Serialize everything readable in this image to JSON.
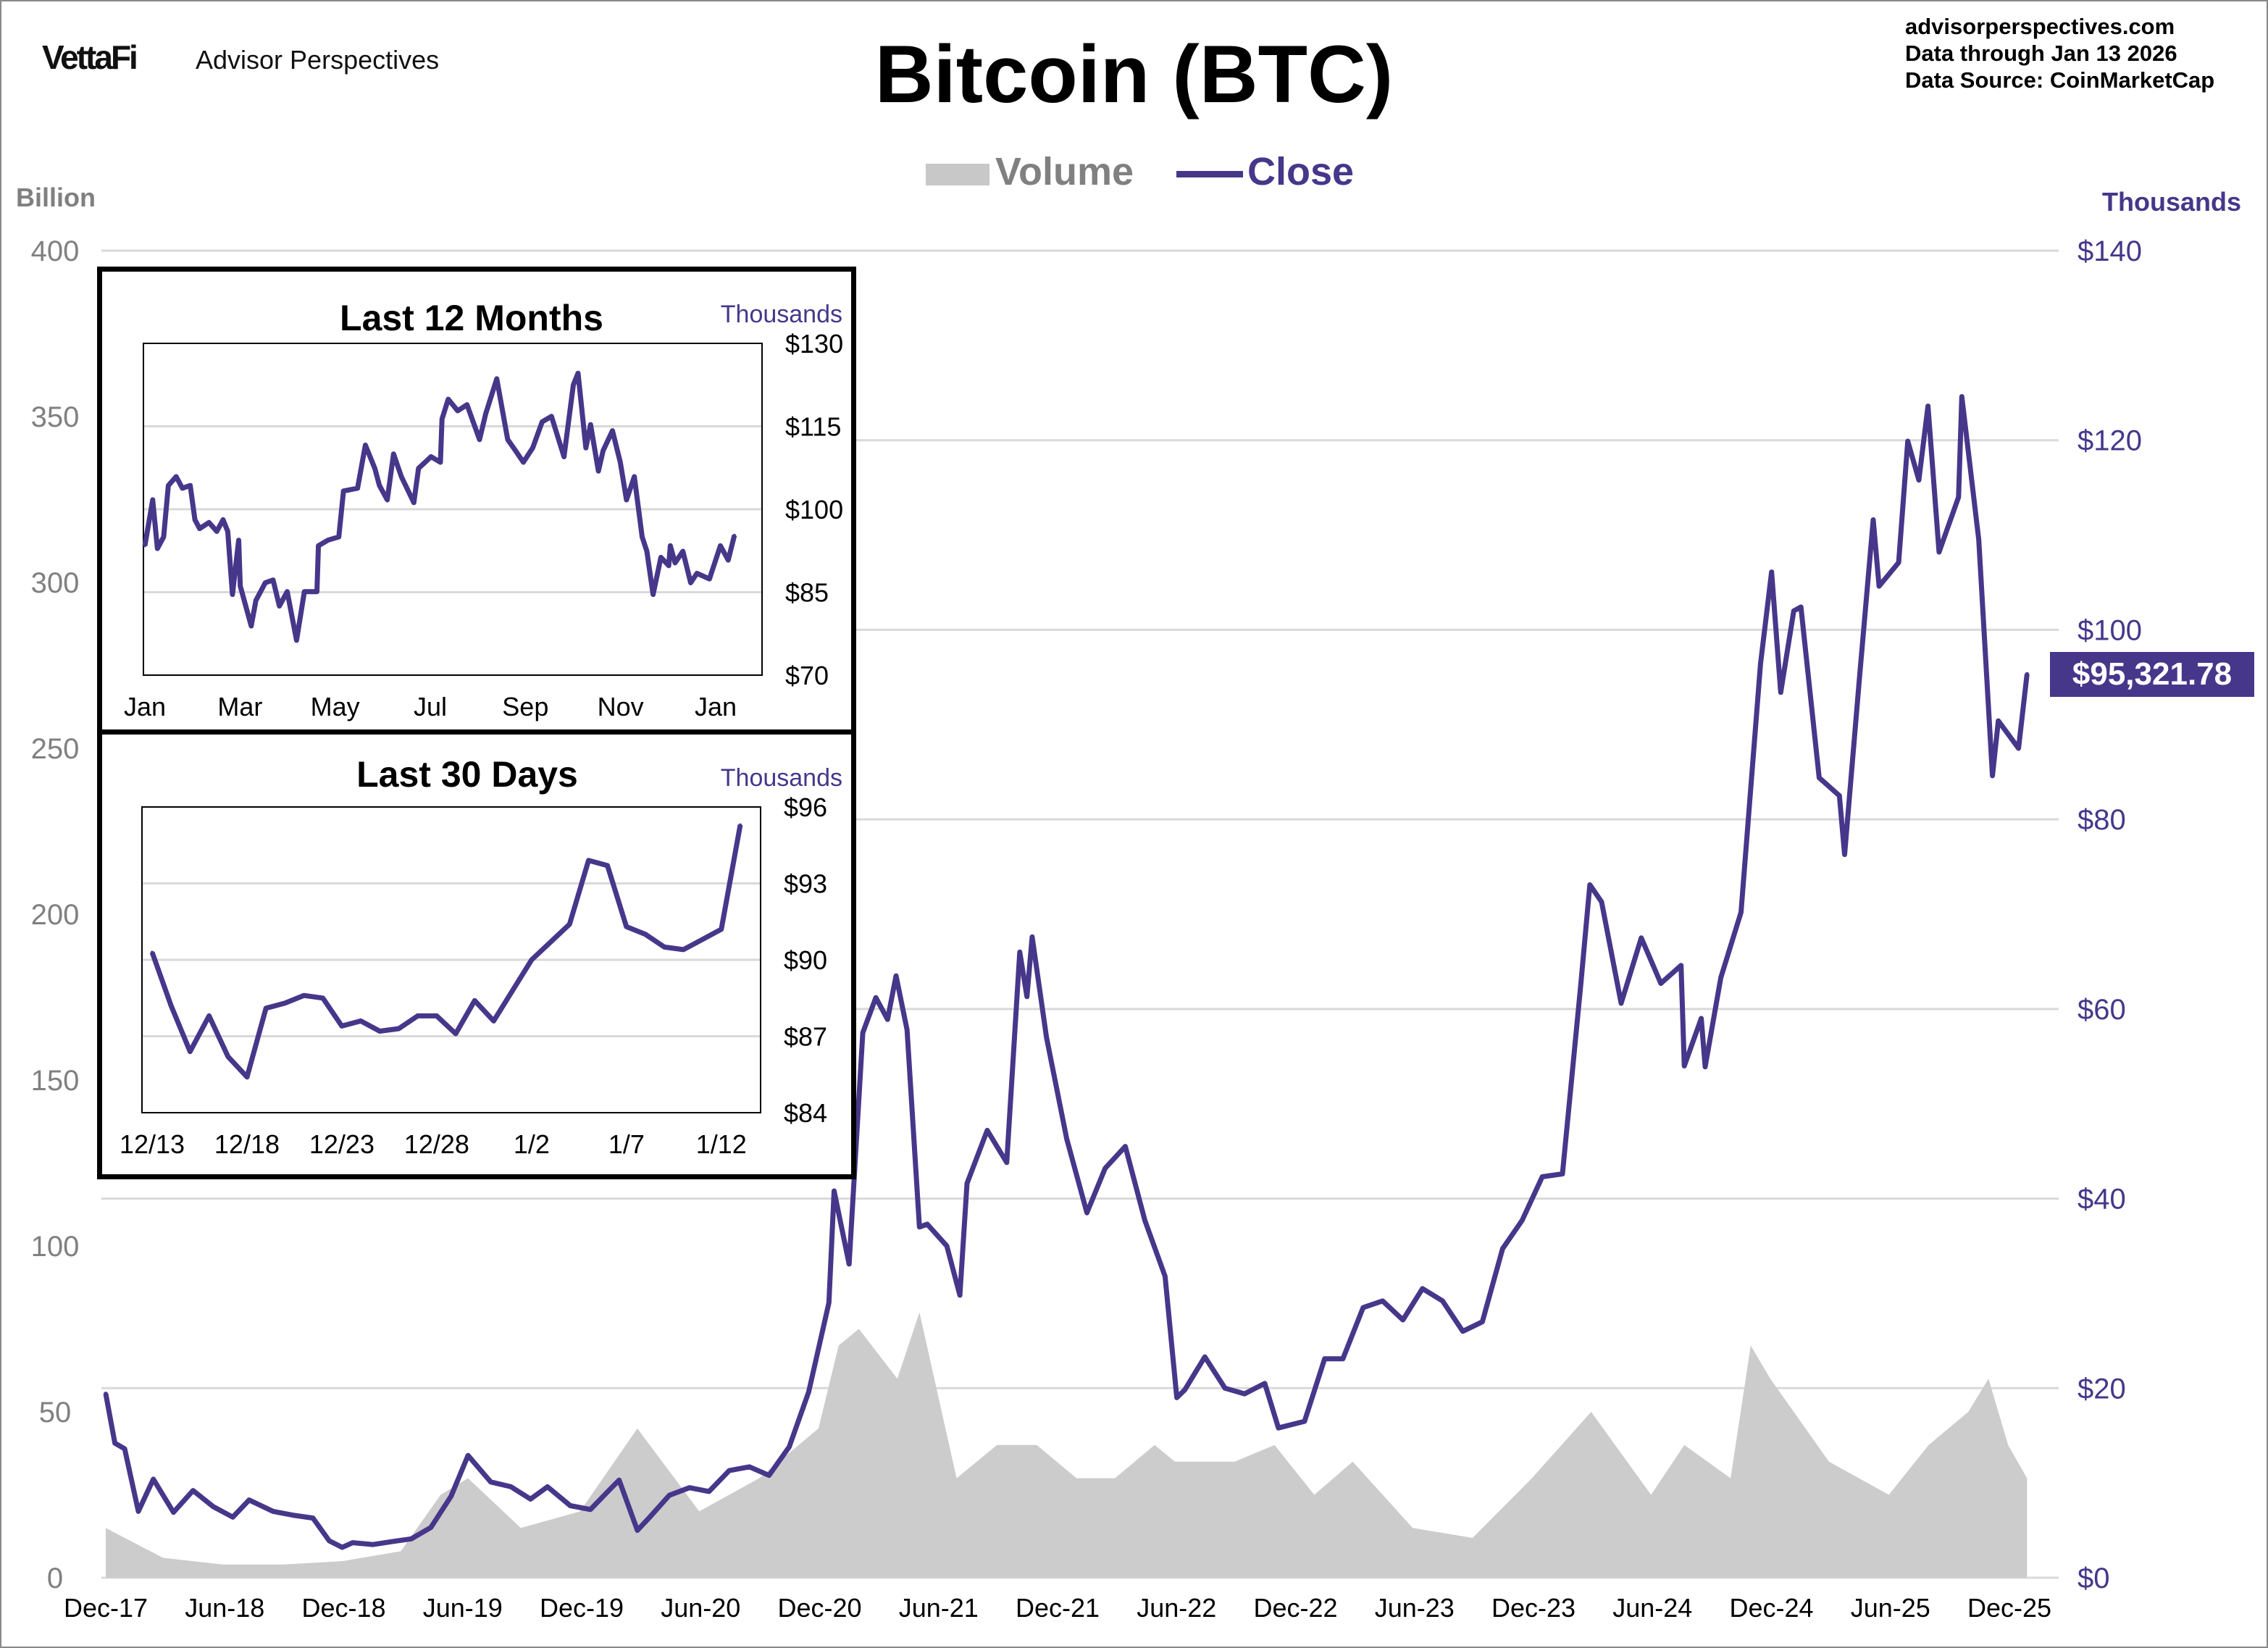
{
  "header": {
    "logo": "VettaFi",
    "logo_subtitle": "Advisor Perspectives",
    "title": "Bitcoin (BTC)",
    "source_lines": [
      "advisorperspectives.com",
      "Data through  Jan 13 2026",
      "Data Source:  CoinMarketCap"
    ]
  },
  "colors": {
    "close": "#46378a",
    "volume": "#cccccc",
    "grid": "#d9d9d9",
    "left_axis": "#808080"
  },
  "last_price_label": "$95,321.78",
  "chart_data": [
    {
      "type": "area+line",
      "title": "Bitcoin (BTC)",
      "legend": [
        "Volume",
        "Close"
      ],
      "legend_placement": "top-center",
      "grid": true,
      "left_axis": {
        "unit_label": "Billion",
        "range": [
          0,
          400
        ],
        "ticks": [
          "0",
          "50",
          "100",
          "150",
          "200",
          "250",
          "300",
          "350",
          "400"
        ]
      },
      "right_axis": {
        "unit_label": "Thousands",
        "range": [
          0,
          140
        ],
        "ticks": [
          "$0",
          "$20",
          "$40",
          "$60",
          "$80",
          "$100",
          "$120",
          "$140"
        ]
      },
      "x_ticks": [
        "Dec-17",
        "Jun-18",
        "Dec-18",
        "Jun-19",
        "Dec-19",
        "Jun-20",
        "Dec-20",
        "Jun-21",
        "Dec-21",
        "Jun-22",
        "Dec-22",
        "Jun-23",
        "Dec-23",
        "Jun-24",
        "Dec-24",
        "Jun-25",
        "Dec-25"
      ],
      "close_series": {
        "name": "Close",
        "axis": "right",
        "points": [
          [
            "2017-12-17",
            19.4
          ],
          [
            "2017-12-31",
            14.2
          ],
          [
            "2018-01-15",
            13.6
          ],
          [
            "2018-02-05",
            7.0
          ],
          [
            "2018-02-28",
            10.4
          ],
          [
            "2018-03-31",
            6.9
          ],
          [
            "2018-04-30",
            9.2
          ],
          [
            "2018-05-31",
            7.5
          ],
          [
            "2018-06-30",
            6.4
          ],
          [
            "2018-07-25",
            8.2
          ],
          [
            "2018-08-31",
            7.0
          ],
          [
            "2018-09-30",
            6.6
          ],
          [
            "2018-10-31",
            6.3
          ],
          [
            "2018-11-25",
            3.9
          ],
          [
            "2018-12-15",
            3.2
          ],
          [
            "2018-12-31",
            3.7
          ],
          [
            "2019-01-31",
            3.5
          ],
          [
            "2019-02-28",
            3.8
          ],
          [
            "2019-03-31",
            4.1
          ],
          [
            "2019-04-30",
            5.3
          ],
          [
            "2019-05-31",
            8.6
          ],
          [
            "2019-06-26",
            12.9
          ],
          [
            "2019-07-31",
            10.1
          ],
          [
            "2019-08-31",
            9.6
          ],
          [
            "2019-09-30",
            8.3
          ],
          [
            "2019-10-26",
            9.6
          ],
          [
            "2019-11-30",
            7.6
          ],
          [
            "2019-12-31",
            7.2
          ],
          [
            "2020-01-31",
            9.4
          ],
          [
            "2020-02-13",
            10.3
          ],
          [
            "2020-03-12",
            5.0
          ],
          [
            "2020-03-31",
            6.4
          ],
          [
            "2020-04-30",
            8.7
          ],
          [
            "2020-05-31",
            9.5
          ],
          [
            "2020-06-30",
            9.1
          ],
          [
            "2020-07-31",
            11.3
          ],
          [
            "2020-08-31",
            11.7
          ],
          [
            "2020-09-30",
            10.8
          ],
          [
            "2020-10-31",
            13.8
          ],
          [
            "2020-11-30",
            19.6
          ],
          [
            "2020-12-31",
            29.0
          ],
          [
            "2021-01-08",
            40.8
          ],
          [
            "2021-01-31",
            33.1
          ],
          [
            "2021-02-21",
            57.5
          ],
          [
            "2021-03-13",
            61.2
          ],
          [
            "2021-03-31",
            58.9
          ],
          [
            "2021-04-13",
            63.5
          ],
          [
            "2021-04-30",
            57.8
          ],
          [
            "2021-05-19",
            37.0
          ],
          [
            "2021-05-31",
            37.3
          ],
          [
            "2021-06-30",
            35.0
          ],
          [
            "2021-07-20",
            29.8
          ],
          [
            "2021-07-31",
            41.6
          ],
          [
            "2021-08-31",
            47.2
          ],
          [
            "2021-09-30",
            43.8
          ],
          [
            "2021-10-20",
            66.0
          ],
          [
            "2021-10-31",
            61.3
          ],
          [
            "2021-11-08",
            67.6
          ],
          [
            "2021-11-30",
            57.0
          ],
          [
            "2021-12-31",
            46.3
          ],
          [
            "2022-01-31",
            38.5
          ],
          [
            "2022-02-28",
            43.2
          ],
          [
            "2022-03-31",
            45.5
          ],
          [
            "2022-04-30",
            37.7
          ],
          [
            "2022-05-31",
            31.8
          ],
          [
            "2022-06-18",
            19.0
          ],
          [
            "2022-06-30",
            19.8
          ],
          [
            "2022-07-31",
            23.3
          ],
          [
            "2022-08-31",
            20.0
          ],
          [
            "2022-09-30",
            19.4
          ],
          [
            "2022-10-31",
            20.5
          ],
          [
            "2022-11-21",
            15.8
          ],
          [
            "2022-12-31",
            16.5
          ],
          [
            "2023-01-31",
            23.1
          ],
          [
            "2023-02-28",
            23.1
          ],
          [
            "2023-03-31",
            28.5
          ],
          [
            "2023-04-30",
            29.2
          ],
          [
            "2023-05-31",
            27.2
          ],
          [
            "2023-06-30",
            30.5
          ],
          [
            "2023-07-31",
            29.2
          ],
          [
            "2023-08-31",
            26.0
          ],
          [
            "2023-09-30",
            27.0
          ],
          [
            "2023-10-31",
            34.7
          ],
          [
            "2023-11-30",
            37.7
          ],
          [
            "2023-12-31",
            42.3
          ],
          [
            "2024-01-31",
            42.6
          ],
          [
            "2024-02-28",
            62.5
          ],
          [
            "2024-03-13",
            73.1
          ],
          [
            "2024-03-31",
            71.3
          ],
          [
            "2024-04-30",
            60.6
          ],
          [
            "2024-05-31",
            67.5
          ],
          [
            "2024-06-30",
            62.7
          ],
          [
            "2024-07-31",
            64.6
          ],
          [
            "2024-08-05",
            54.0
          ],
          [
            "2024-08-31",
            59.0
          ],
          [
            "2024-09-06",
            53.9
          ],
          [
            "2024-09-30",
            63.3
          ],
          [
            "2024-10-31",
            70.2
          ],
          [
            "2024-11-30",
            96.4
          ],
          [
            "2024-12-17",
            106.1
          ],
          [
            "2024-12-31",
            93.4
          ],
          [
            "2025-01-20",
            102.0
          ],
          [
            "2025-01-31",
            102.4
          ],
          [
            "2025-02-28",
            84.4
          ],
          [
            "2025-03-31",
            82.5
          ],
          [
            "2025-04-08",
            76.3
          ],
          [
            "2025-04-30",
            94.2
          ],
          [
            "2025-05-22",
            111.6
          ],
          [
            "2025-05-31",
            104.6
          ],
          [
            "2025-06-30",
            107.1
          ],
          [
            "2025-07-14",
            119.9
          ],
          [
            "2025-07-31",
            115.8
          ],
          [
            "2025-08-14",
            123.6
          ],
          [
            "2025-08-31",
            108.2
          ],
          [
            "2025-09-30",
            114.0
          ],
          [
            "2025-10-05",
            124.6
          ],
          [
            "2025-10-31",
            109.5
          ],
          [
            "2025-11-21",
            84.6
          ],
          [
            "2025-11-30",
            90.4
          ],
          [
            "2025-12-31",
            87.5
          ],
          [
            "2026-01-13",
            95.3
          ]
        ]
      },
      "volume_series": {
        "name": "Volume",
        "axis": "left",
        "points": [
          [
            "2017-12-17",
            15
          ],
          [
            "2018-01-15",
            12
          ],
          [
            "2018-03-15",
            6
          ],
          [
            "2018-06-15",
            4
          ],
          [
            "2018-09-15",
            4
          ],
          [
            "2018-12-15",
            5
          ],
          [
            "2019-03-15",
            8
          ],
          [
            "2019-05-15",
            25
          ],
          [
            "2019-06-26",
            30
          ],
          [
            "2019-09-15",
            15
          ],
          [
            "2019-12-15",
            20
          ],
          [
            "2020-03-12",
            45
          ],
          [
            "2020-06-15",
            20
          ],
          [
            "2020-09-15",
            30
          ],
          [
            "2020-12-15",
            45
          ],
          [
            "2021-01-15",
            70
          ],
          [
            "2021-02-15",
            75
          ],
          [
            "2021-04-15",
            60
          ],
          [
            "2021-05-19",
            80
          ],
          [
            "2021-07-15",
            30
          ],
          [
            "2021-09-15",
            40
          ],
          [
            "2021-11-15",
            40
          ],
          [
            "2022-01-15",
            30
          ],
          [
            "2022-03-15",
            30
          ],
          [
            "2022-05-15",
            40
          ],
          [
            "2022-06-15",
            35
          ],
          [
            "2022-09-15",
            35
          ],
          [
            "2022-11-15",
            40
          ],
          [
            "2023-01-15",
            25
          ],
          [
            "2023-03-15",
            35
          ],
          [
            "2023-06-15",
            15
          ],
          [
            "2023-09-15",
            12
          ],
          [
            "2023-12-15",
            30
          ],
          [
            "2024-03-15",
            50
          ],
          [
            "2024-06-15",
            25
          ],
          [
            "2024-08-05",
            40
          ],
          [
            "2024-10-15",
            30
          ],
          [
            "2024-11-15",
            70
          ],
          [
            "2024-12-15",
            60
          ],
          [
            "2025-03-15",
            35
          ],
          [
            "2025-06-15",
            25
          ],
          [
            "2025-08-15",
            40
          ],
          [
            "2025-10-15",
            50
          ],
          [
            "2025-11-15",
            60
          ],
          [
            "2025-12-15",
            40
          ],
          [
            "2026-01-13",
            30
          ]
        ]
      }
    },
    {
      "type": "line",
      "title": "Last 12 Months",
      "y_unit_label": "Thousands",
      "y_range": [
        70,
        130
      ],
      "y_ticks": [
        "$130",
        "$115",
        "$100",
        "$85",
        "$70"
      ],
      "x_ticks": [
        "Jan",
        "Mar",
        "May",
        "Jul",
        "Sep",
        "Nov",
        "Jan"
      ],
      "grid": true,
      "points": [
        [
          "2025-01-01",
          93.4
        ],
        [
          "2025-01-06",
          101.7
        ],
        [
          "2025-01-09",
          92.9
        ],
        [
          "2025-01-13",
          95.0
        ],
        [
          "2025-01-16",
          104.3
        ],
        [
          "2025-01-21",
          105.9
        ],
        [
          "2025-01-25",
          103.8
        ],
        [
          "2025-01-30",
          104.3
        ],
        [
          "2025-02-02",
          98.1
        ],
        [
          "2025-02-05",
          96.5
        ],
        [
          "2025-02-11",
          97.6
        ],
        [
          "2025-02-16",
          96.0
        ],
        [
          "2025-02-20",
          98.1
        ],
        [
          "2025-02-23",
          96.0
        ],
        [
          "2025-02-26",
          84.6
        ],
        [
          "2025-03-02",
          94.4
        ],
        [
          "2025-03-03",
          86.1
        ],
        [
          "2025-03-10",
          78.9
        ],
        [
          "2025-03-13",
          83.5
        ],
        [
          "2025-03-19",
          86.7
        ],
        [
          "2025-03-24",
          87.2
        ],
        [
          "2025-03-28",
          82.5
        ],
        [
          "2025-04-02",
          85.1
        ],
        [
          "2025-04-08",
          76.3
        ],
        [
          "2025-04-13",
          85.1
        ],
        [
          "2025-04-21",
          85.1
        ],
        [
          "2025-04-22",
          93.4
        ],
        [
          "2025-04-28",
          94.4
        ],
        [
          "2025-05-05",
          95.0
        ],
        [
          "2025-05-08",
          103.3
        ],
        [
          "2025-05-17",
          103.8
        ],
        [
          "2025-05-22",
          111.6
        ],
        [
          "2025-05-28",
          107.4
        ],
        [
          "2025-05-31",
          104.3
        ],
        [
          "2025-06-05",
          101.7
        ],
        [
          "2025-06-09",
          110.0
        ],
        [
          "2025-06-14",
          105.9
        ],
        [
          "2025-06-22",
          101.2
        ],
        [
          "2025-06-25",
          107.4
        ],
        [
          "2025-07-03",
          109.5
        ],
        [
          "2025-07-09",
          108.5
        ],
        [
          "2025-07-10",
          116.3
        ],
        [
          "2025-07-14",
          119.9
        ],
        [
          "2025-07-20",
          117.8
        ],
        [
          "2025-07-26",
          118.9
        ],
        [
          "2025-08-03",
          112.6
        ],
        [
          "2025-08-07",
          117.3
        ],
        [
          "2025-08-14",
          123.6
        ],
        [
          "2025-08-18",
          117.3
        ],
        [
          "2025-08-21",
          112.6
        ],
        [
          "2025-08-26",
          110.6
        ],
        [
          "2025-08-31",
          108.5
        ],
        [
          "2025-09-06",
          111.1
        ],
        [
          "2025-09-12",
          115.8
        ],
        [
          "2025-09-18",
          116.8
        ],
        [
          "2025-09-26",
          109.5
        ],
        [
          "2025-10-02",
          122.5
        ],
        [
          "2025-10-05",
          124.6
        ],
        [
          "2025-10-10",
          111.1
        ],
        [
          "2025-10-13",
          115.3
        ],
        [
          "2025-10-18",
          106.9
        ],
        [
          "2025-10-21",
          110.6
        ],
        [
          "2025-10-27",
          114.2
        ],
        [
          "2025-11-01",
          108.5
        ],
        [
          "2025-11-05",
          101.7
        ],
        [
          "2025-11-10",
          105.9
        ],
        [
          "2025-11-15",
          95.0
        ],
        [
          "2025-11-18",
          92.4
        ],
        [
          "2025-11-22",
          84.6
        ],
        [
          "2025-11-27",
          91.3
        ],
        [
          "2025-12-02",
          89.8
        ],
        [
          "2025-12-03",
          93.4
        ],
        [
          "2025-12-06",
          90.3
        ],
        [
          "2025-12-11",
          92.4
        ],
        [
          "2025-12-16",
          86.7
        ],
        [
          "2025-12-20",
          88.4
        ],
        [
          "2025-12-28",
          87.4
        ],
        [
          "2026-01-04",
          93.4
        ],
        [
          "2026-01-09",
          90.8
        ],
        [
          "2026-01-13",
          95.3
        ]
      ]
    },
    {
      "type": "line",
      "title": "Last 30 Days",
      "y_unit_label": "Thousands",
      "y_range": [
        84,
        96
      ],
      "y_ticks": [
        "$96",
        "$93",
        "$90",
        "$87",
        "$84"
      ],
      "x_ticks": [
        "12/13",
        "12/18",
        "12/23",
        "12/28",
        "1/2",
        "1/7",
        "1/12"
      ],
      "grid": true,
      "dates": [
        "12/13",
        "12/14",
        "12/15",
        "12/16",
        "12/17",
        "12/18",
        "12/19",
        "12/20",
        "12/21",
        "12/22",
        "12/23",
        "12/24",
        "12/25",
        "12/26",
        "12/27",
        "12/28",
        "12/29",
        "12/30",
        "12/31",
        "1/1",
        "1/2",
        "1/3",
        "1/4",
        "1/5",
        "1/6",
        "1/7",
        "1/8",
        "1/9",
        "1/10",
        "1/11",
        "1/12",
        "1/13"
      ],
      "values": [
        90.3,
        88.2,
        86.4,
        87.8,
        86.2,
        85.4,
        88.1,
        88.3,
        88.6,
        88.5,
        87.4,
        87.6,
        87.2,
        87.3,
        87.8,
        87.8,
        87.1,
        88.4,
        87.6,
        88.8,
        90.0,
        90.7,
        91.4,
        93.9,
        93.7,
        91.3,
        91.0,
        90.5,
        90.4,
        90.8,
        91.2,
        95.3
      ]
    }
  ]
}
